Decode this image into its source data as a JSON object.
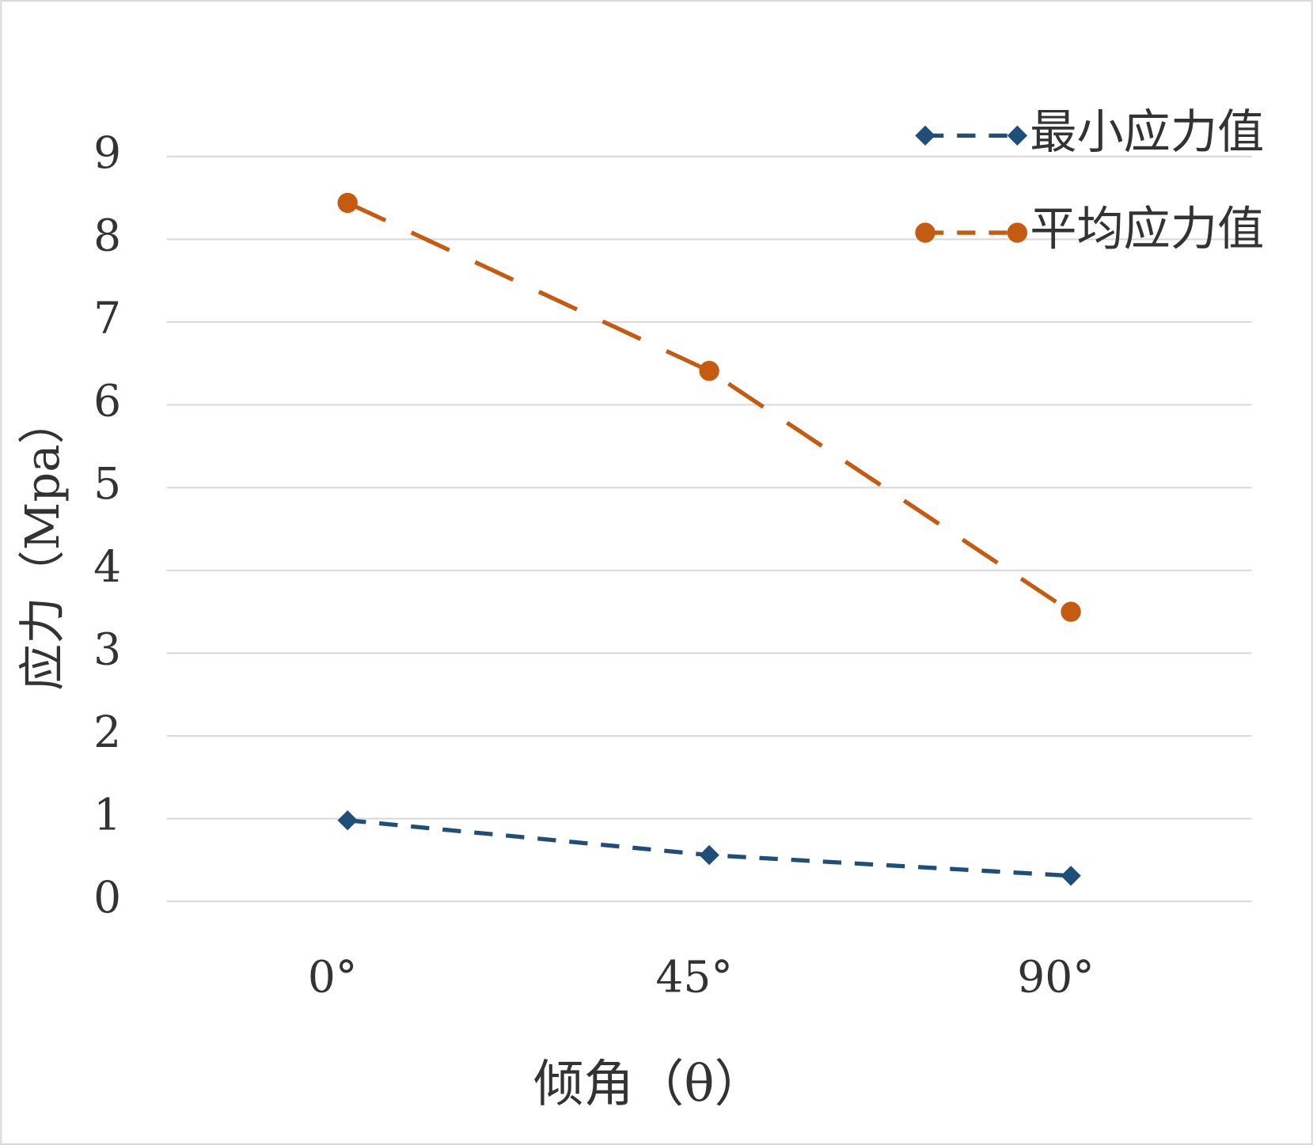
{
  "chart_data": {
    "type": "line",
    "categories": [
      "0°",
      "45°",
      "90°"
    ],
    "series": [
      {
        "name": "最小应力值",
        "color": "#1f4e79",
        "marker": "diamond",
        "dash": "short",
        "values": [
          0.98,
          0.56,
          0.31
        ]
      },
      {
        "name": "平均应力值",
        "color": "#c55a11",
        "marker": "circle",
        "dash": "long",
        "values": [
          8.44,
          6.41,
          3.5
        ]
      }
    ],
    "x_label": "倾角（θ）",
    "y_label": "应力（Mpa）",
    "ylim": [
      0,
      9
    ],
    "yticks": [
      0,
      1,
      2,
      3,
      4,
      5,
      6,
      7,
      8,
      9
    ],
    "grid": true,
    "legend": "top-right"
  }
}
